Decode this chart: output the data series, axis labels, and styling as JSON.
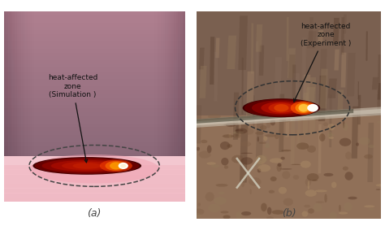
{
  "label_a": "(a)",
  "label_b": "(b)",
  "annot_a": "heat-affected\nzone\n(Simulation )",
  "annot_b": "heat-affected\nzone\n(Experiment )",
  "bg_color": "#ffffff",
  "figsize": [
    4.74,
    2.89
  ],
  "dpi": 100
}
